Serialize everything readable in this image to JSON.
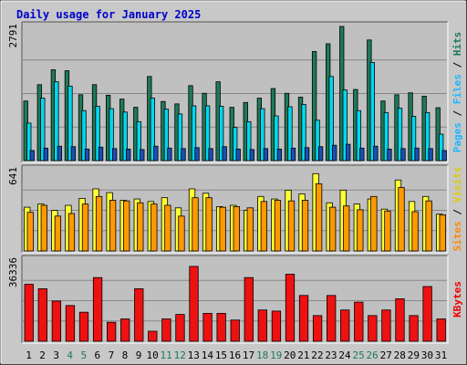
{
  "chart_data": {
    "type": "bar",
    "title": "Daily usage for January 2025",
    "categories": [
      "1",
      "2",
      "3",
      "4",
      "5",
      "6",
      "7",
      "8",
      "9",
      "10",
      "11",
      "12",
      "13",
      "14",
      "15",
      "16",
      "17",
      "18",
      "19",
      "20",
      "21",
      "22",
      "23",
      "24",
      "25",
      "26",
      "27",
      "28",
      "29",
      "30",
      "31"
    ],
    "weekend_days": [
      "4",
      "5",
      "11",
      "12",
      "18",
      "19",
      "25",
      "26"
    ],
    "panels": [
      {
        "name": "hits-files-pages",
        "ymax_label": "2791",
        "ylim": [
          0,
          2791
        ],
        "side_label": {
          "pages": "Pages",
          "files": "Files",
          "hits": "Hits",
          "sep": " / "
        },
        "series": [
          {
            "name": "Hits",
            "color": "#1e7a58",
            "values": [
              1240,
              1580,
              1890,
              1870,
              1370,
              1580,
              1360,
              1280,
              1110,
              1750,
              1230,
              1180,
              1560,
              1400,
              1640,
              1110,
              1210,
              1300,
              1500,
              1400,
              1320,
              2270,
              2430,
              2791,
              1480,
              2510,
              1240,
              1370,
              1410,
              1340,
              1100
            ]
          },
          {
            "name": "Files",
            "color": "#00d8f0",
            "values": [
              780,
              1300,
              1640,
              1550,
              1040,
              1130,
              1080,
              1010,
              810,
              1300,
              1070,
              970,
              1140,
              1140,
              1130,
              690,
              810,
              1080,
              930,
              1120,
              1170,
              840,
              1750,
              1470,
              1040,
              2040,
              1000,
              1090,
              920,
              1000,
              550
            ]
          },
          {
            "name": "Pages",
            "color": "#1a4fb8",
            "values": [
              210,
              260,
              300,
              290,
              240,
              280,
              250,
              240,
              230,
              300,
              260,
              250,
              270,
              250,
              290,
              240,
              230,
              250,
              240,
              260,
              270,
              290,
              320,
              340,
              260,
              300,
              240,
              250,
              260,
              250,
              210
            ]
          }
        ]
      },
      {
        "name": "visits-sites",
        "ymax_label": "641",
        "ylim": [
          0,
          641
        ],
        "side_label": {
          "sites": "Sites",
          "visits": "Visits",
          "sep": " / "
        },
        "series": [
          {
            "name": "Visits",
            "color": "#ffff33",
            "values": [
              345,
              370,
              320,
              360,
              415,
              490,
              460,
              400,
              410,
              390,
              420,
              340,
              490,
              455,
              350,
              360,
              320,
              430,
              410,
              480,
              450,
              610,
              380,
              480,
              370,
              410,
              330,
              560,
              390,
              430,
              290
            ]
          },
          {
            "name": "Sites",
            "color": "#ff9900",
            "values": [
              305,
              360,
              275,
              295,
              370,
              430,
              400,
              395,
              380,
              370,
              360,
              275,
              420,
              420,
              345,
              350,
              340,
              390,
              400,
              395,
              400,
              530,
              345,
              355,
              325,
              430,
              315,
              500,
              310,
              395,
              285
            ]
          }
        ]
      },
      {
        "name": "kbytes",
        "ymax_label": "36336",
        "ylim": [
          0,
          36336
        ],
        "side_label": {
          "kbytes": "KBytes"
        },
        "series": [
          {
            "name": "KBytes",
            "color": "#ee1111",
            "values": [
              25500,
              23500,
              18000,
              16000,
              13000,
              28500,
              8500,
              10000,
              23500,
              4500,
              10000,
              12000,
              33500,
              12500,
              12500,
              9500,
              28500,
              14000,
              13500,
              30000,
              20500,
              11500,
              20500,
              14000,
              17500,
              11500,
              14000,
              19000,
              11500,
              24500,
              10000
            ]
          }
        ]
      }
    ],
    "colors": {
      "title": "#0000cc",
      "pages": "#1ab7ff",
      "files": "#1ab7ff",
      "hits": "#1e7a58",
      "sites": "#ff8800",
      "visits": "#ddcc00",
      "kbytes": "#ee0000",
      "sep": "#000000",
      "weekday_label": "#000000",
      "weekend_label": "#1e7a58",
      "panel_bg": "#c0c0c0",
      "gridline": "#888888",
      "outer_bg": "#c8c8c8"
    }
  }
}
